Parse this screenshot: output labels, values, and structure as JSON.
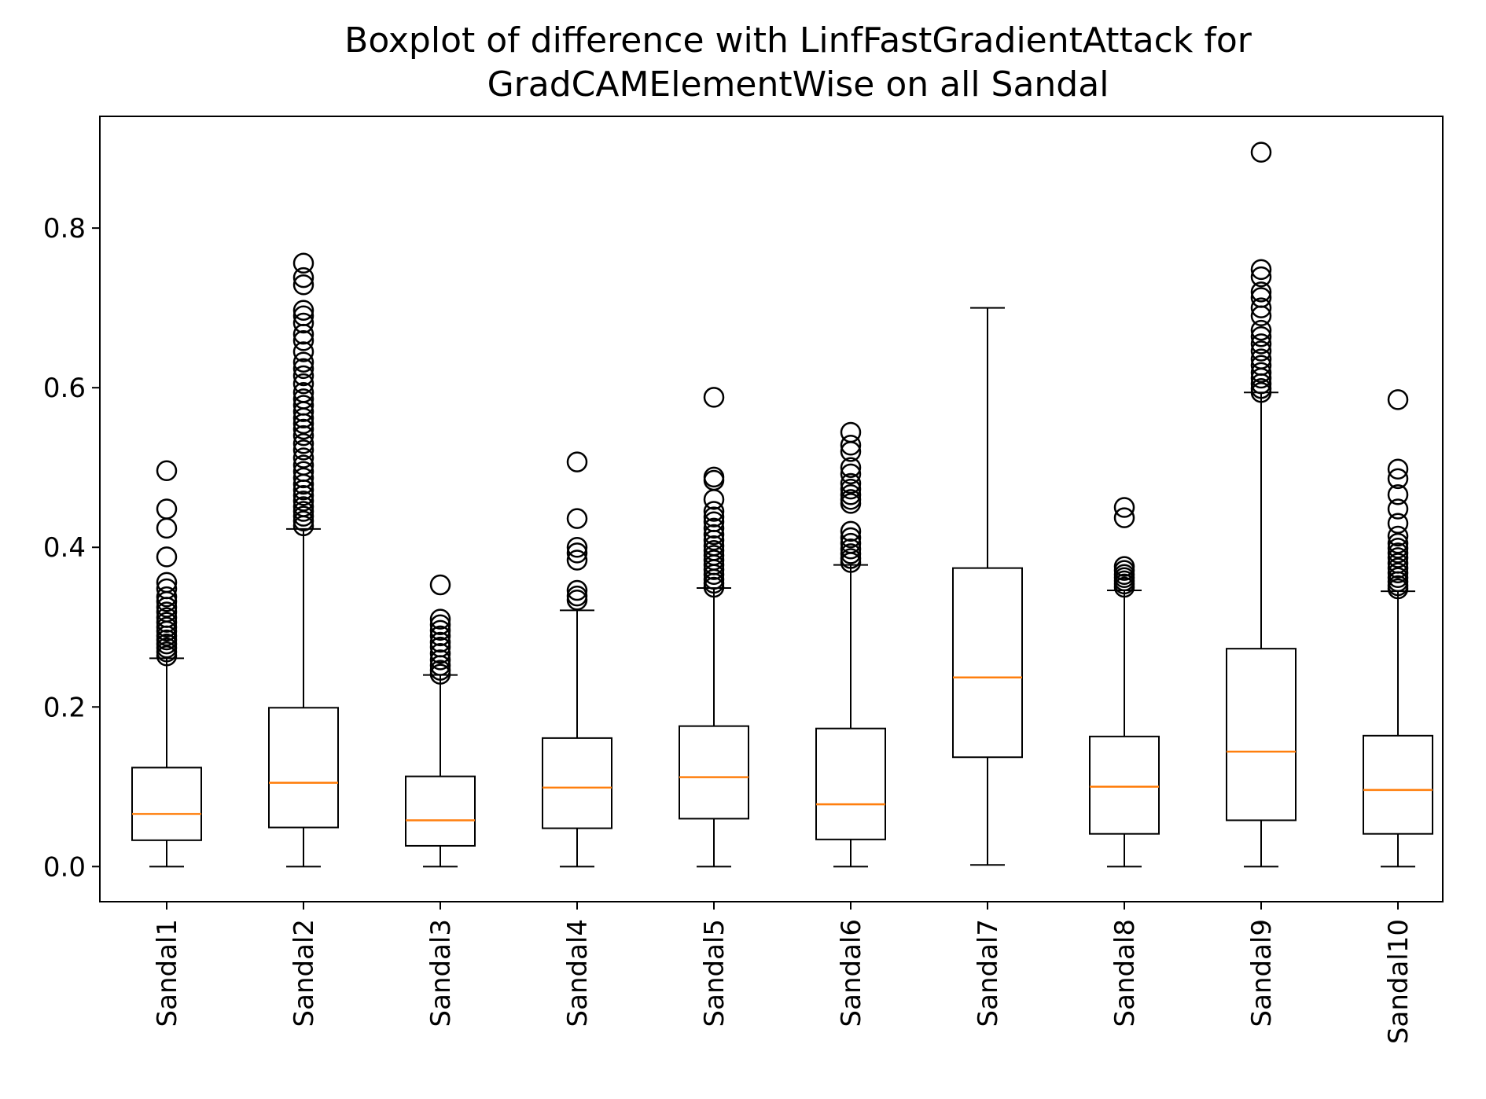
{
  "chart_data": {
    "type": "boxplot",
    "title_lines": [
      "Boxplot of difference with LinfFastGradientAttack for",
      "GradCAMElementWise on all Sandal"
    ],
    "xlabel": "",
    "ylabel": "",
    "ylim": [
      -0.044,
      0.94
    ],
    "y_ticks": [
      0.0,
      0.2,
      0.4,
      0.6,
      0.8
    ],
    "y_tick_labels": [
      "0.0",
      "0.2",
      "0.4",
      "0.6",
      "0.8"
    ],
    "grid": false,
    "colors": {
      "box": "#000000",
      "median": "#ff7f0e",
      "outlier": "#000000",
      "background": "#ffffff"
    },
    "categories": [
      "Sandal1",
      "Sandal2",
      "Sandal3",
      "Sandal4",
      "Sandal5",
      "Sandal6",
      "Sandal7",
      "Sandal8",
      "Sandal9",
      "Sandal10"
    ],
    "boxes": [
      {
        "label": "Sandal1",
        "whislo": 0.0,
        "q1": 0.033,
        "med": 0.066,
        "q3": 0.124,
        "whishi": 0.261,
        "fliers": [
          0.496,
          0.448,
          0.424,
          0.388,
          0.356,
          0.348,
          0.338,
          0.332,
          0.325,
          0.319,
          0.312,
          0.306,
          0.3,
          0.295,
          0.289,
          0.284,
          0.279,
          0.274,
          0.269,
          0.264
        ]
      },
      {
        "label": "Sandal2",
        "whislo": 0.0,
        "q1": 0.049,
        "med": 0.105,
        "q3": 0.199,
        "whishi": 0.423,
        "fliers": [
          0.756,
          0.738,
          0.729,
          0.697,
          0.69,
          0.681,
          0.667,
          0.659,
          0.645,
          0.632,
          0.624,
          0.615,
          0.605,
          0.594,
          0.586,
          0.578,
          0.57,
          0.562,
          0.555,
          0.548,
          0.54,
          0.53,
          0.522,
          0.512,
          0.503,
          0.495,
          0.487,
          0.479,
          0.472,
          0.465,
          0.458,
          0.451,
          0.445,
          0.439,
          0.433,
          0.427
        ]
      },
      {
        "label": "Sandal3",
        "whislo": 0.0,
        "q1": 0.026,
        "med": 0.058,
        "q3": 0.113,
        "whishi": 0.24,
        "fliers": [
          0.353,
          0.31,
          0.303,
          0.296,
          0.289,
          0.281,
          0.275,
          0.267,
          0.259,
          0.252,
          0.246,
          0.241
        ]
      },
      {
        "label": "Sandal4",
        "whislo": 0.0,
        "q1": 0.048,
        "med": 0.099,
        "q3": 0.161,
        "whishi": 0.321,
        "fliers": [
          0.507,
          0.436,
          0.4,
          0.393,
          0.384,
          0.346,
          0.339,
          0.334
        ]
      },
      {
        "label": "Sandal5",
        "whislo": 0.0,
        "q1": 0.06,
        "med": 0.112,
        "q3": 0.176,
        "whishi": 0.349,
        "fliers": [
          0.588,
          0.488,
          0.484,
          0.46,
          0.445,
          0.438,
          0.432,
          0.424,
          0.416,
          0.409,
          0.402,
          0.396,
          0.39,
          0.384,
          0.378,
          0.372,
          0.366,
          0.36,
          0.355,
          0.35
        ]
      },
      {
        "label": "Sandal6",
        "whislo": 0.0,
        "q1": 0.034,
        "med": 0.078,
        "q3": 0.173,
        "whishi": 0.378,
        "fliers": [
          0.544,
          0.528,
          0.52,
          0.5,
          0.492,
          0.48,
          0.473,
          0.466,
          0.46,
          0.455,
          0.42,
          0.412,
          0.405,
          0.398,
          0.392,
          0.386,
          0.381
        ]
      },
      {
        "label": "Sandal7",
        "whislo": 0.002,
        "q1": 0.137,
        "med": 0.237,
        "q3": 0.374,
        "whishi": 0.7,
        "fliers": []
      },
      {
        "label": "Sandal8",
        "whislo": 0.0,
        "q1": 0.041,
        "med": 0.1,
        "q3": 0.163,
        "whishi": 0.346,
        "fliers": [
          0.45,
          0.437,
          0.376,
          0.371,
          0.366,
          0.362,
          0.358,
          0.354,
          0.35
        ]
      },
      {
        "label": "Sandal9",
        "whislo": 0.0,
        "q1": 0.058,
        "med": 0.144,
        "q3": 0.273,
        "whishi": 0.594,
        "fliers": [
          0.895,
          0.748,
          0.739,
          0.72,
          0.713,
          0.7,
          0.69,
          0.672,
          0.664,
          0.655,
          0.646,
          0.636,
          0.628,
          0.619,
          0.612,
          0.605,
          0.599,
          0.594
        ]
      },
      {
        "label": "Sandal10",
        "whislo": 0.0,
        "q1": 0.041,
        "med": 0.096,
        "q3": 0.164,
        "whishi": 0.345,
        "fliers": [
          0.585,
          0.498,
          0.486,
          0.466,
          0.448,
          0.43,
          0.414,
          0.405,
          0.399,
          0.393,
          0.387,
          0.38,
          0.374,
          0.368,
          0.362,
          0.357,
          0.352,
          0.348
        ]
      }
    ]
  }
}
